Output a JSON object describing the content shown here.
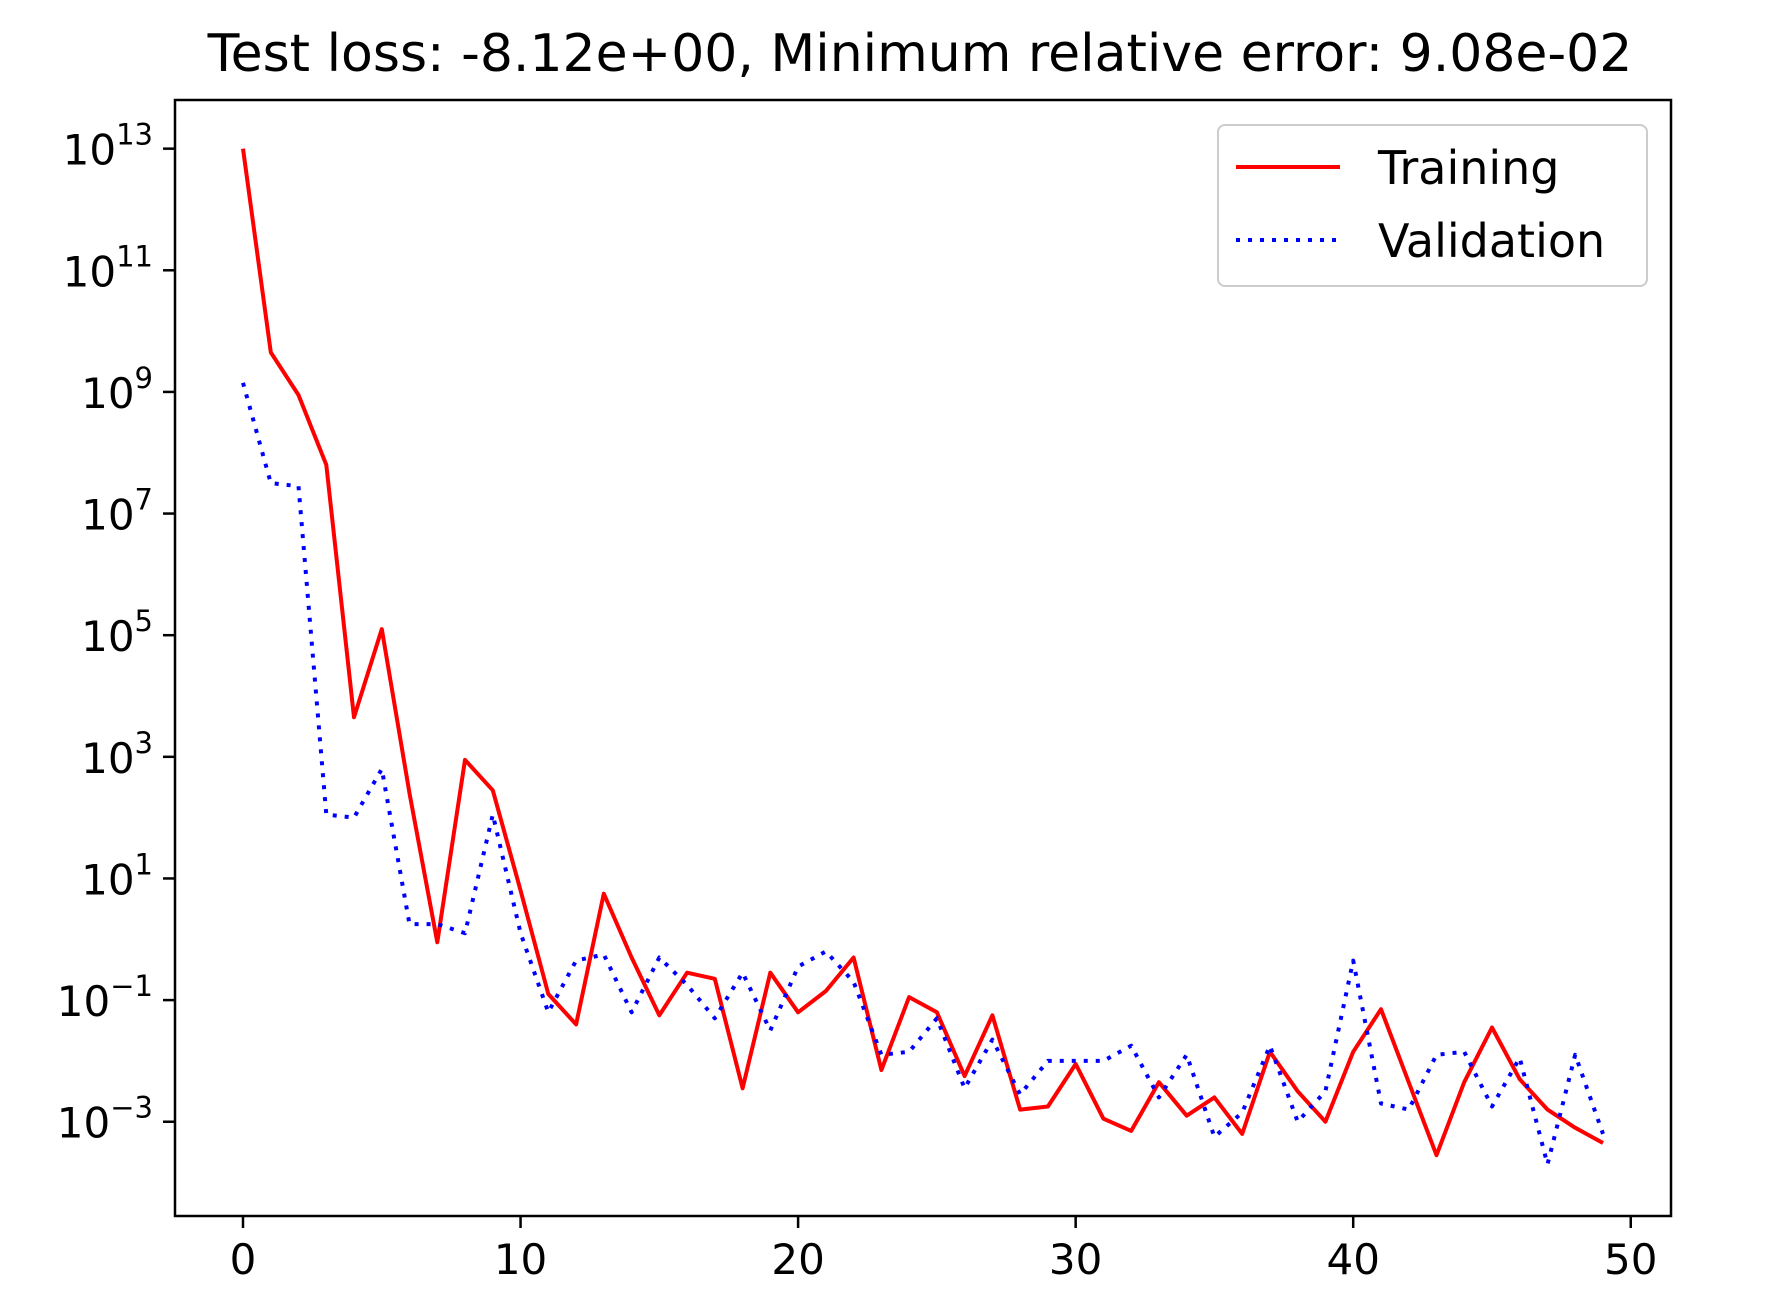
{
  "chart_data": {
    "type": "line",
    "title": "Test loss: -8.12e+00, Minimum relative error: 9.08e-02",
    "xlabel": "",
    "ylabel": "",
    "xscale": "linear",
    "yscale": "log",
    "xlim": [
      -2.45,
      51.45
    ],
    "ylim_log10": [
      -4.55,
      13.8
    ],
    "x_ticks": [
      0,
      10,
      20,
      30,
      40,
      50
    ],
    "x_tick_labels": [
      "0",
      "10",
      "20",
      "30",
      "40",
      "50"
    ],
    "y_ticks_exponent": [
      13,
      11,
      9,
      7,
      5,
      3,
      1,
      -1,
      -3
    ],
    "y_tick_base": "10",
    "y_tick_exponent_labels": [
      "13",
      "11",
      "9",
      "7",
      "5",
      "3",
      "1",
      "−1",
      "−3"
    ],
    "grid": false,
    "legend_position": "upper-right",
    "series": [
      {
        "name": "Training",
        "color": "#ff0000",
        "style": "solid",
        "x": [
          0,
          1,
          2,
          3,
          4,
          5,
          6,
          7,
          8,
          9,
          10,
          11,
          12,
          13,
          14,
          15,
          16,
          17,
          18,
          19,
          20,
          21,
          22,
          23,
          24,
          25,
          26,
          27,
          28,
          29,
          30,
          31,
          32,
          33,
          34,
          35,
          36,
          37,
          38,
          39,
          40,
          41,
          42,
          43,
          44,
          45,
          46,
          47,
          48,
          49
        ],
        "log10_values": [
          13.0,
          9.65,
          8.95,
          7.8,
          3.65,
          5.1,
          2.4,
          -0.05,
          2.95,
          2.45,
          0.8,
          -0.9,
          -1.4,
          0.75,
          -0.3,
          -1.25,
          -0.55,
          -0.65,
          -2.45,
          -0.55,
          -1.2,
          -0.85,
          -0.3,
          -2.15,
          -0.95,
          -1.2,
          -2.25,
          -1.25,
          -2.8,
          -2.75,
          -2.05,
          -2.95,
          -3.15,
          -2.35,
          -2.9,
          -2.6,
          -3.2,
          -1.85,
          -2.5,
          -3.0,
          -1.85,
          -1.15,
          -2.35,
          -3.55,
          -2.35,
          -1.45,
          -2.3,
          -2.8,
          -3.1,
          -3.35
        ]
      },
      {
        "name": "Validation",
        "color": "#0000ff",
        "style": "dotted",
        "x": [
          0,
          1,
          2,
          3,
          4,
          5,
          6,
          7,
          8,
          9,
          10,
          11,
          12,
          13,
          14,
          15,
          16,
          17,
          18,
          19,
          20,
          21,
          22,
          23,
          24,
          25,
          26,
          27,
          28,
          29,
          30,
          31,
          32,
          33,
          34,
          35,
          36,
          37,
          38,
          39,
          40,
          41,
          42,
          43,
          44,
          45,
          46,
          47,
          48,
          49
        ],
        "log10_values": [
          9.15,
          7.5,
          7.45,
          2.05,
          2.0,
          2.8,
          0.25,
          0.25,
          0.1,
          2.05,
          0.1,
          -1.2,
          -0.35,
          -0.25,
          -1.2,
          -0.3,
          -0.75,
          -1.3,
          -0.55,
          -1.5,
          -0.45,
          -0.2,
          -0.7,
          -1.9,
          -1.85,
          -1.3,
          -2.45,
          -1.65,
          -2.55,
          -2.0,
          -2.0,
          -2.0,
          -1.75,
          -2.6,
          -1.9,
          -3.25,
          -2.85,
          -1.75,
          -3.0,
          -2.5,
          -0.35,
          -2.7,
          -2.8,
          -1.9,
          -1.85,
          -2.75,
          -1.95,
          -3.7,
          -1.9,
          -3.2
        ]
      }
    ]
  }
}
